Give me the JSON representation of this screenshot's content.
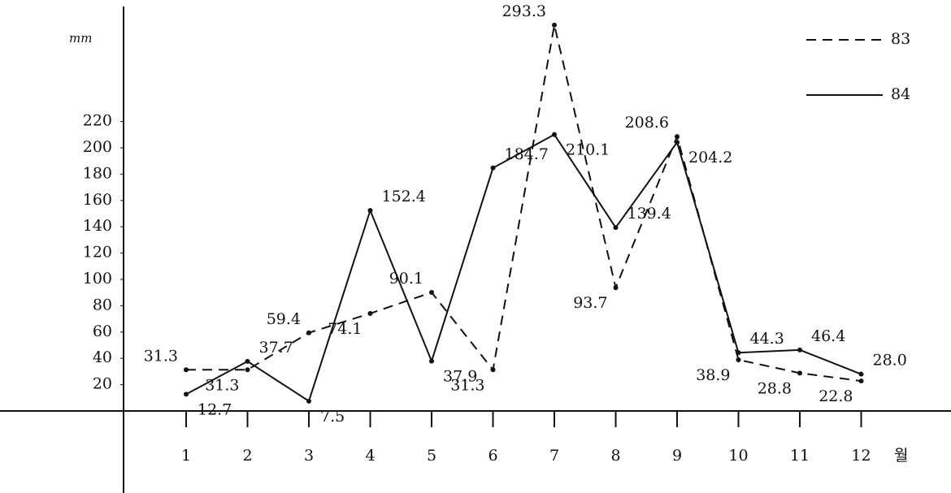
{
  "chart_data": {
    "type": "line",
    "y_label": "mm",
    "x_label": "월",
    "categories": [
      "1",
      "2",
      "3",
      "4",
      "5",
      "6",
      "7",
      "8",
      "9",
      "10",
      "11",
      "12"
    ],
    "series": [
      {
        "name": "83",
        "color": "#111111",
        "dash": true,
        "values": [
          31.3,
          31.3,
          59.4,
          74.1,
          90.1,
          31.3,
          293.3,
          93.7,
          208.6,
          38.9,
          28.8,
          22.8
        ],
        "value_labels": [
          "31.3",
          "31.3",
          "59.4",
          "74.1",
          "90.1",
          "31.3",
          "293.3",
          "93.7",
          "208.6",
          "38.9",
          "28.8",
          "22.8"
        ]
      },
      {
        "name": "84",
        "color": "#111111",
        "dash": false,
        "values": [
          12.7,
          37.7,
          7.5,
          152.4,
          37.9,
          184.7,
          210.1,
          139.4,
          204.2,
          44.3,
          46.4,
          28.0
        ],
        "value_labels": [
          "12.7",
          "37.7",
          "7.5",
          "152.4",
          "37.9",
          "184.7",
          "210.1",
          "139.4",
          "204.2",
          "44.3",
          "46.4",
          "28.0"
        ]
      }
    ],
    "ylim": [
      0,
      300
    ],
    "yticks": [
      20,
      40,
      60,
      80,
      100,
      120,
      140,
      160,
      180,
      200,
      220
    ],
    "legend": "top-right"
  }
}
